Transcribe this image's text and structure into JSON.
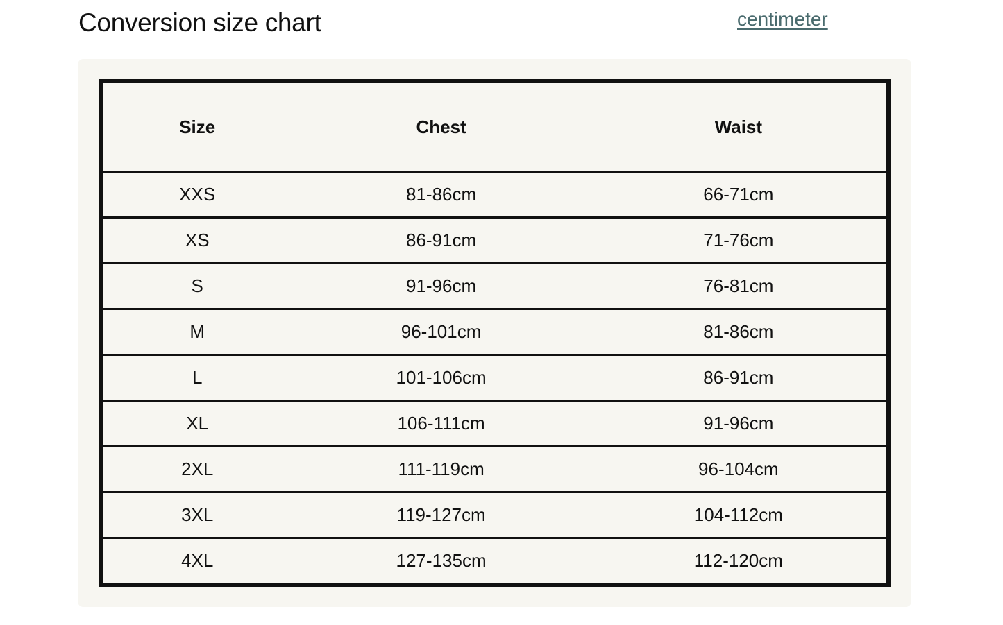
{
  "title": "Conversion size chart",
  "unit_link": "centimeter",
  "colors": {
    "panel_bg": "#f7f6f1",
    "link": "#4a6b6e",
    "border": "#111111"
  },
  "table": {
    "headers": [
      "Size",
      "Chest",
      "Waist"
    ],
    "rows": [
      [
        "XXS",
        "81-86cm",
        "66-71cm"
      ],
      [
        "XS",
        "86-91cm",
        "71-76cm"
      ],
      [
        "S",
        "91-96cm",
        "76-81cm"
      ],
      [
        "M",
        "96-101cm",
        "81-86cm"
      ],
      [
        "L",
        "101-106cm",
        "86-91cm"
      ],
      [
        "XL",
        "106-111cm",
        "91-96cm"
      ],
      [
        "2XL",
        "111-119cm",
        "96-104cm"
      ],
      [
        "3XL",
        "119-127cm",
        "104-112cm"
      ],
      [
        "4XL",
        "127-135cm",
        "112-120cm"
      ]
    ]
  }
}
